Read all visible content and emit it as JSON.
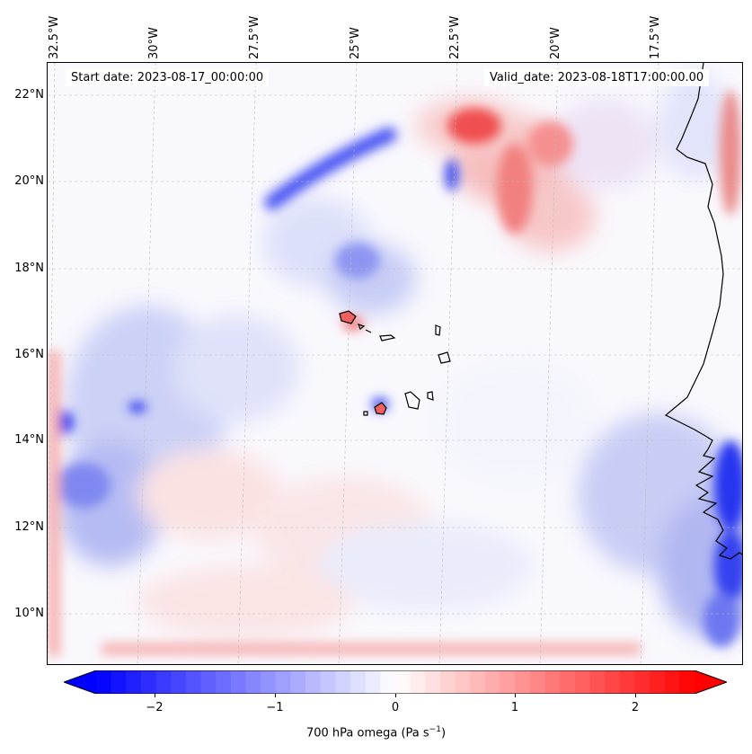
{
  "map": {
    "start_date": "Start date: 2023-08-17_00:00:00",
    "valid_date": "Valid_date: 2023-08-18T17:00:00.00",
    "lon_labels": [
      "32.5°W",
      "30°W",
      "27.5°W",
      "25°W",
      "22.5°W",
      "20°W",
      "17.5°W"
    ],
    "lat_labels": [
      "22°N",
      "20°N",
      "18°N",
      "16°N",
      "14°N",
      "12°N",
      "10°N"
    ],
    "field": "700 hPa omega"
  },
  "colorbar": {
    "label_main": "700 hPa omega (Pa s",
    "label_exp": "−1",
    "label_end": ")",
    "ticks": [
      "−2",
      "−1",
      "0",
      "1",
      "2"
    ],
    "min": -2.75,
    "max": 2.75,
    "neg_color": "#0000ff",
    "mid_color": "#ffffff",
    "pos_color": "#ff0000"
  }
}
